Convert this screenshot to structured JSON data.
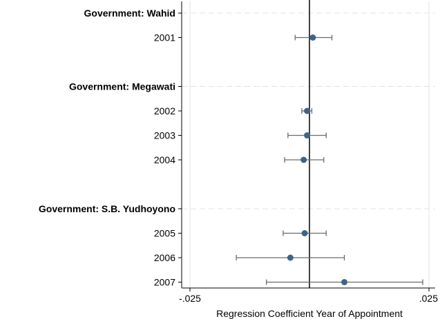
{
  "chart_data": {
    "type": "scatter",
    "subtype": "coefficient-plot",
    "title": "",
    "xlabel": "Regression Coefficient Year of Appointment",
    "ylabel": "",
    "xlim": [
      -0.025,
      0.025
    ],
    "x_ticks": [
      {
        "value": -0.025,
        "label": "-.025"
      },
      {
        "value": 0.025,
        "label": ".025"
      }
    ],
    "reference_line_x": 0,
    "grid": true,
    "groups": [
      {
        "label": "Government: Wahid",
        "rows": [
          {
            "label": "2001",
            "estimate": 0.0007,
            "ci_low": -0.003,
            "ci_high": 0.0047
          }
        ]
      },
      {
        "label": "Government: Megawati",
        "rows": [
          {
            "label": "2002",
            "estimate": -0.0005,
            "ci_low": -0.0016,
            "ci_high": 0.0005
          },
          {
            "label": "2003",
            "estimate": -0.0005,
            "ci_low": -0.0045,
            "ci_high": 0.0035
          },
          {
            "label": "2004",
            "estimate": -0.0012,
            "ci_low": -0.0052,
            "ci_high": 0.003
          }
        ]
      },
      {
        "label": "Government: S.B. Yudhoyono",
        "rows": [
          {
            "label": "2005",
            "estimate": -0.001,
            "ci_low": -0.0055,
            "ci_high": 0.0035
          },
          {
            "label": "2006",
            "estimate": -0.004,
            "ci_low": -0.0153,
            "ci_high": 0.0073
          },
          {
            "label": "2007",
            "estimate": 0.0073,
            "ci_low": -0.009,
            "ci_high": 0.0237
          }
        ]
      }
    ],
    "colors": {
      "marker": "#3e6384",
      "ci": "#6a6a6a",
      "grid": "#e3e3e3",
      "axis": "#000000"
    }
  }
}
